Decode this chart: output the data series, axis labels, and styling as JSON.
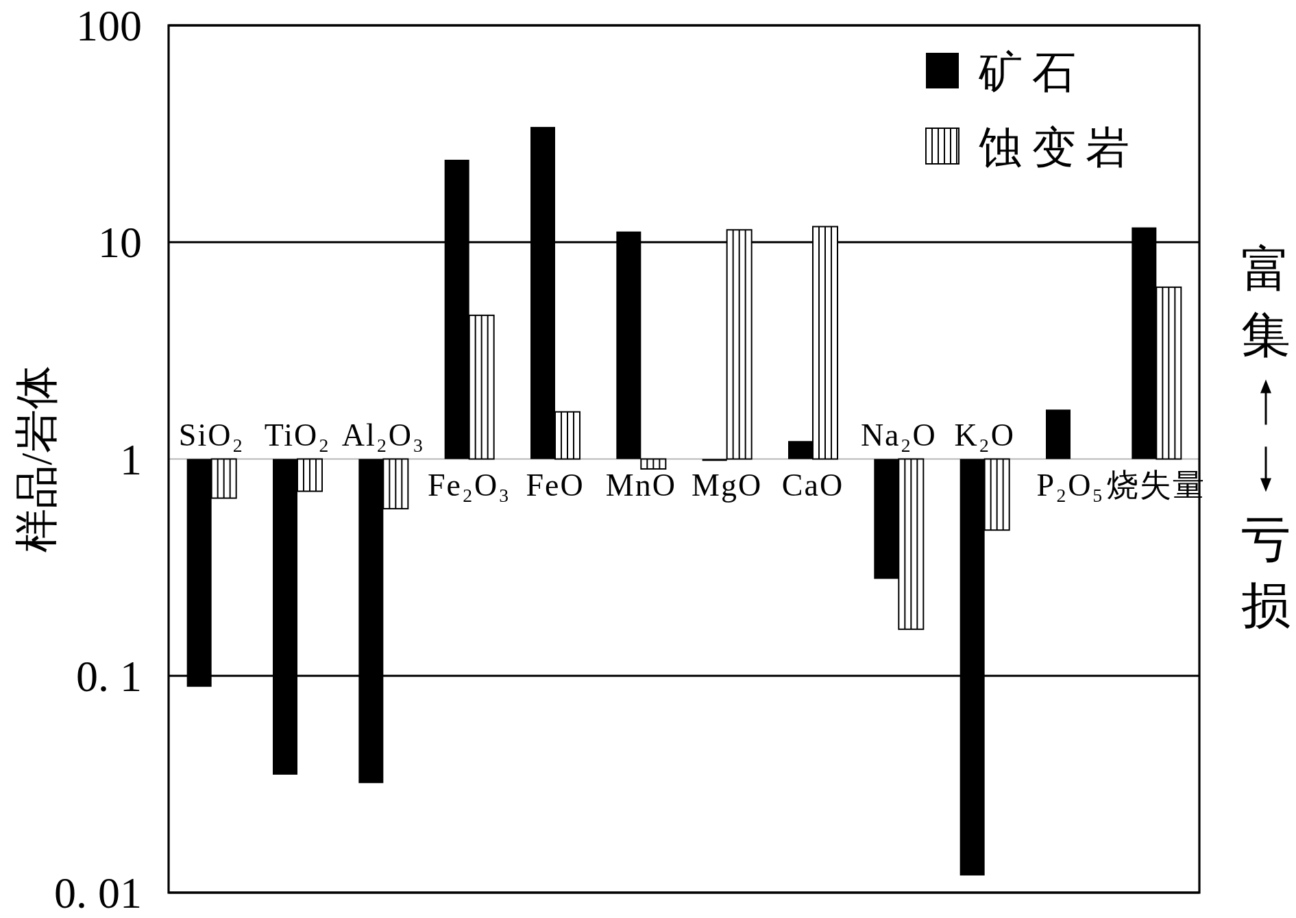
{
  "chart_data": {
    "type": "bar",
    "ylabel": "样品/岩体",
    "categories": [
      "SiO₂",
      "TiO₂",
      "Al₂O₃",
      "Fe₂O₃",
      "FeO",
      "MnO",
      "MgO",
      "CaO",
      "Na₂O",
      "K₂O",
      "P₂O₅",
      "烧失量"
    ],
    "series": [
      {
        "name": "矿石",
        "color": "#000000",
        "base": [
          1,
          1,
          1,
          1,
          1,
          1,
          1,
          1,
          1,
          1,
          1,
          1
        ],
        "values": [
          -0.911,
          -0.965,
          -0.968,
          23,
          33,
          10.2,
          -0.02,
          0.21,
          -0.72,
          -0.988,
          0.69,
          10.7
        ]
      },
      {
        "name": "蚀变岩",
        "color": "#ffffff",
        "base": [
          1,
          1,
          1,
          1,
          1,
          1,
          1,
          1,
          1,
          1,
          null,
          1
        ],
        "values": [
          -0.34,
          -0.29,
          -0.41,
          3.6,
          0.65,
          -0.1,
          10.4,
          10.8,
          -0.836,
          -0.53,
          null,
          5.2
        ]
      }
    ],
    "log": "y",
    "ylim": [
      0.01,
      100
    ],
    "yticks": [
      {
        "value": 0.01,
        "label": "0. 01"
      },
      {
        "value": 0.1,
        "label": "0. 1"
      },
      1,
      10,
      100
    ],
    "grid": "y",
    "legend": "top right",
    "annotations": [
      "富集",
      "亏损"
    ]
  }
}
